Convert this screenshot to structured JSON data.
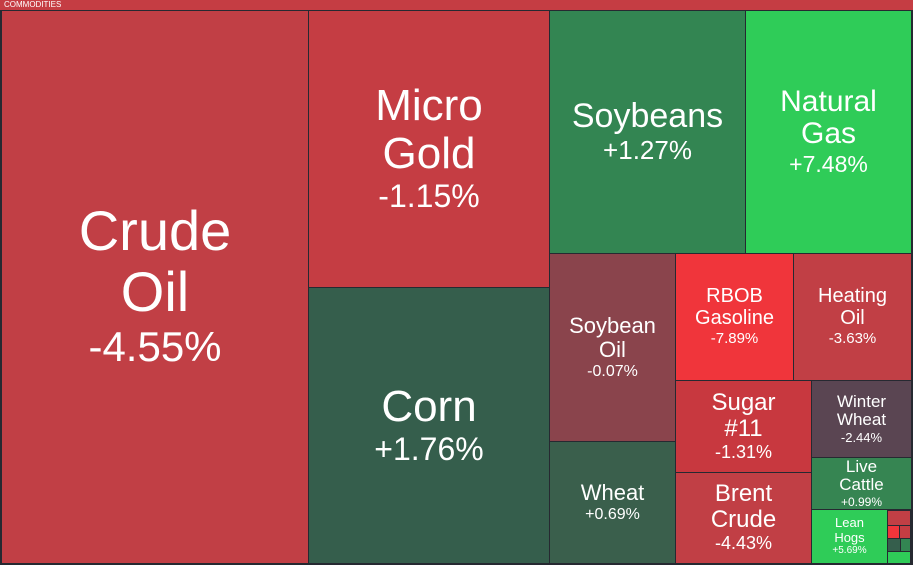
{
  "header": {
    "title": "COMMODITIES"
  },
  "tiles": [
    {
      "label": "Crude Oil",
      "change": "-4.55%",
      "color": "#c13f45"
    },
    {
      "label": "Micro Gold",
      "change": "-1.15%",
      "color": "#c53d43"
    },
    {
      "label": "Corn",
      "change": "+1.76%",
      "color": "#355e4c"
    },
    {
      "label": "Soybeans",
      "change": "+1.27%",
      "color": "#338552"
    },
    {
      "label": "Natural Gas",
      "change": "+7.48%",
      "color": "#2fcc58"
    },
    {
      "label": "Soybean Oil",
      "change": "-0.07%",
      "color": "#8a444c"
    },
    {
      "label": "Wheat",
      "change": "+0.69%",
      "color": "#3a5f4c"
    },
    {
      "label": "RBOB Gasoline",
      "change": "-7.89%",
      "color": "#f0353b"
    },
    {
      "label": "Heating Oil",
      "change": "-3.63%",
      "color": "#c13f45"
    },
    {
      "label": "Sugar #11",
      "change": "-1.31%",
      "color": "#c8383f"
    },
    {
      "label": "Brent Crude",
      "change": "-4.43%",
      "color": "#c13f45"
    },
    {
      "label": "Winter Wheat",
      "change": "-2.44%",
      "color": "#5a4552"
    },
    {
      "label": "Live Cattle",
      "change": "+0.99%",
      "color": "#368552"
    },
    {
      "label": "Lean Hogs",
      "change": "+5.69%",
      "color": "#2fcc58"
    }
  ]
}
